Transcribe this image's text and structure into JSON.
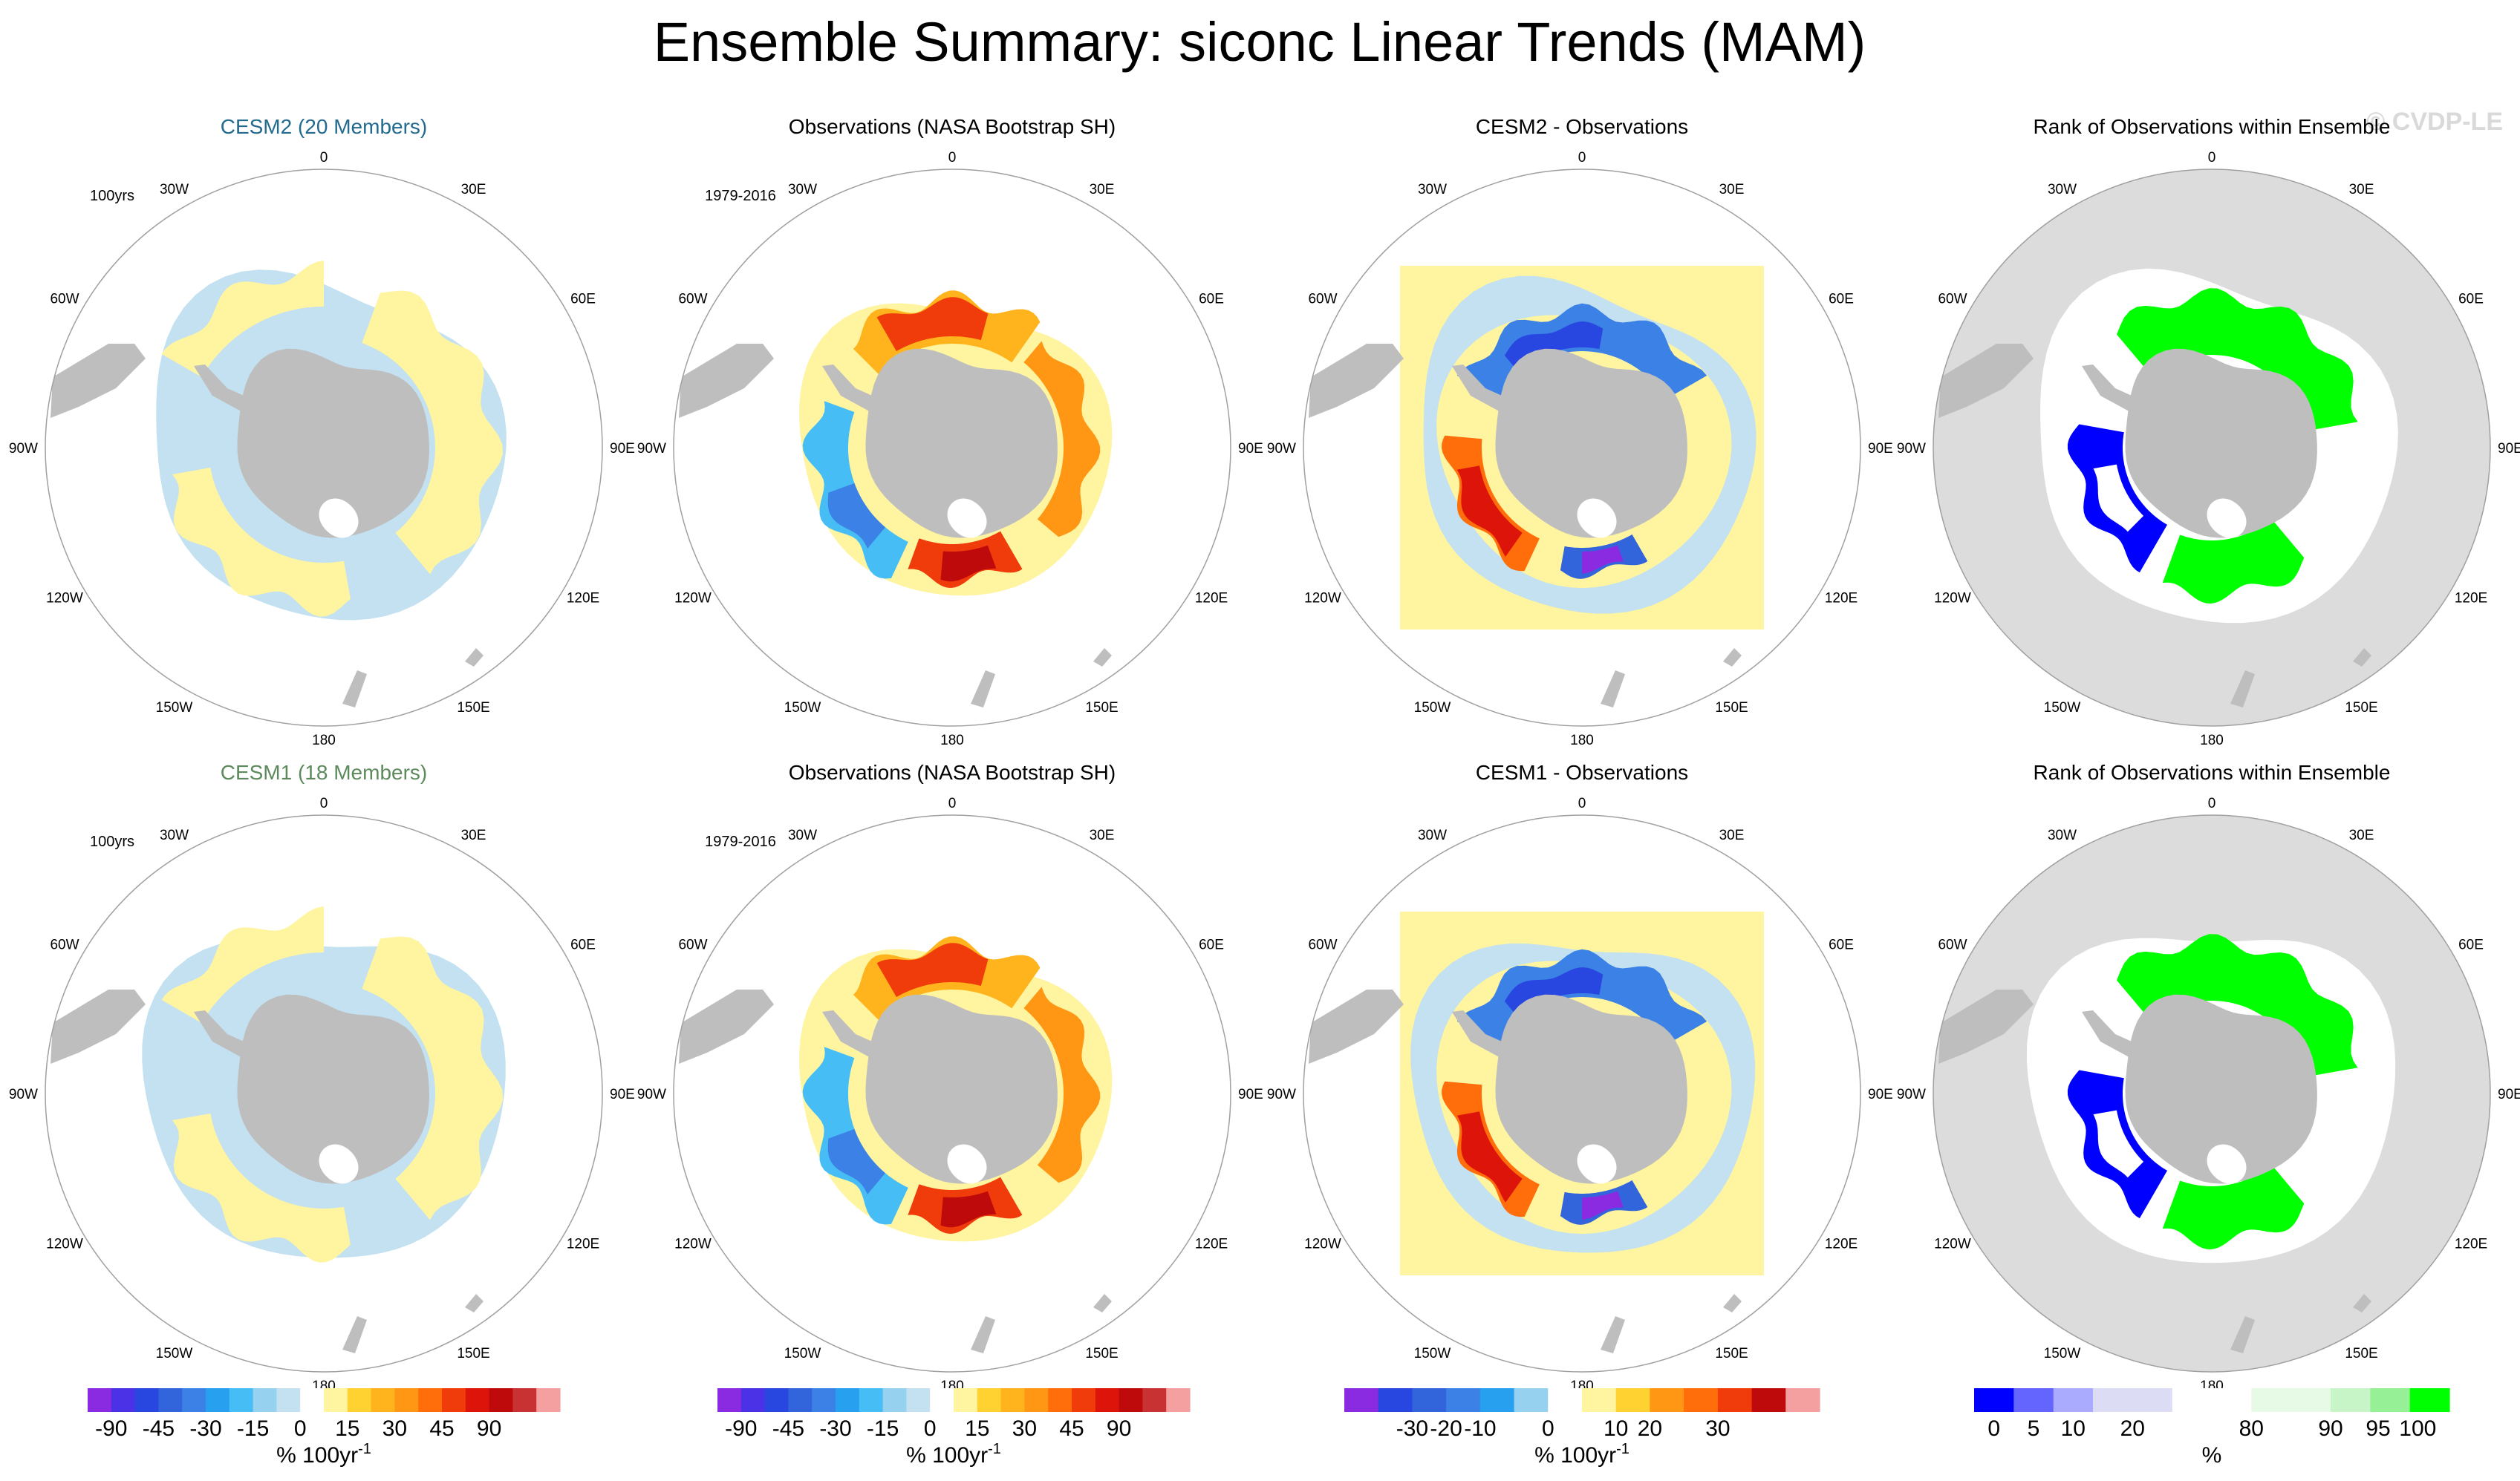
{
  "title": "Ensemble Summary: siconc Linear Trends (MAM)",
  "watermark": "© CVDP-LE",
  "chart_data": [
    {
      "type": "polar-map",
      "rows": [
        {
          "panels": [
            {
              "title": "CESM2 (20 Members)",
              "title_color": "#226a8f",
              "corner_label": "100yrs",
              "kind": "model"
            },
            {
              "title": "Observations (NASA Bootstrap SH)",
              "title_color": "#000000",
              "corner_label": "1979-2016",
              "kind": "obs"
            },
            {
              "title": "CESM2 - Observations",
              "title_color": "#000000",
              "corner_label": "",
              "kind": "diff"
            },
            {
              "title": "Rank of Observations within Ensemble",
              "title_color": "#000000",
              "corner_label": "",
              "kind": "rank"
            }
          ]
        },
        {
          "panels": [
            {
              "title": "CESM1 (18 Members)",
              "title_color": "#5c8a5c",
              "corner_label": "100yrs",
              "kind": "model"
            },
            {
              "title": "Observations (NASA Bootstrap SH)",
              "title_color": "#000000",
              "corner_label": "1979-2016",
              "kind": "obs"
            },
            {
              "title": "CESM1 - Observations",
              "title_color": "#000000",
              "corner_label": "",
              "kind": "diff"
            },
            {
              "title": "Rank of Observations within Ensemble",
              "title_color": "#000000",
              "corner_label": "",
              "kind": "rank"
            }
          ]
        }
      ],
      "longitude_labels": [
        "0",
        "30E",
        "60E",
        "90E",
        "120E",
        "150E",
        "180",
        "150W",
        "120W",
        "90W",
        "60W",
        "30W"
      ],
      "longitude_angles_deg": [
        0,
        30,
        60,
        90,
        120,
        150,
        180,
        210,
        240,
        270,
        300,
        330
      ]
    }
  ],
  "colorbars": [
    {
      "name": "trend-colorbar-1",
      "colors": [
        "#8a2be2",
        "#4b32e6",
        "#2846e0",
        "#3264dc",
        "#3c82e6",
        "#28a0f0",
        "#46bef5",
        "#96d2f0",
        "#c3e1f0",
        "#ffffff",
        "#fff4a0",
        "#ffd232",
        "#ffb41e",
        "#ff9614",
        "#ff6e0a",
        "#f03c0a",
        "#dc140a",
        "#be0a0a",
        "#c83232",
        "#f5a0a0"
      ],
      "tick_labels": [
        "-90",
        "-45",
        "-30",
        "-15",
        "0",
        "15",
        "30",
        "45",
        "90"
      ],
      "tick_positions": [
        1,
        3,
        5,
        7,
        9,
        11,
        13,
        15,
        17
      ],
      "unit": "% 100yr",
      "unit_exp": "-1"
    },
    {
      "name": "trend-colorbar-2",
      "colors": [
        "#8a2be2",
        "#4b32e6",
        "#2846e0",
        "#3264dc",
        "#3c82e6",
        "#28a0f0",
        "#46bef5",
        "#96d2f0",
        "#c3e1f0",
        "#ffffff",
        "#fff4a0",
        "#ffd232",
        "#ffb41e",
        "#ff9614",
        "#ff6e0a",
        "#f03c0a",
        "#dc140a",
        "#be0a0a",
        "#c83232",
        "#f5a0a0"
      ],
      "tick_labels": [
        "-90",
        "-45",
        "-30",
        "-15",
        "0",
        "15",
        "30",
        "45",
        "90"
      ],
      "tick_positions": [
        1,
        3,
        5,
        7,
        9,
        11,
        13,
        15,
        17
      ],
      "unit": "% 100yr",
      "unit_exp": "-1"
    },
    {
      "name": "diff-colorbar",
      "colors": [
        "#8a2be2",
        "#2846e0",
        "#3264dc",
        "#3c82e6",
        "#28a0f0",
        "#96d2f0",
        "#ffffff",
        "#fff4a0",
        "#ffd232",
        "#ff9614",
        "#ff6e0a",
        "#f03c0a",
        "#be0a0a",
        "#f5a0a0"
      ],
      "tick_labels": [
        "-30",
        "-20",
        "-10",
        "0",
        "10",
        "20",
        "30"
      ],
      "tick_positions": [
        2,
        3,
        4,
        6,
        8,
        9,
        11
      ],
      "unit": "% 100yr",
      "unit_exp": "-1"
    },
    {
      "name": "rank-colorbar",
      "colors": [
        "#0000ff",
        "#6464ff",
        "#aaaaff",
        "#dcdcf5",
        "#dcdcf5",
        "#ffffff",
        "#ffffff",
        "#e6fae6",
        "#e6fae6",
        "#c8f5c8",
        "#96f096",
        "#00ff00"
      ],
      "tick_labels": [
        "0",
        "5",
        "10",
        "20",
        "80",
        "90",
        "95",
        "100"
      ],
      "tick_positions": [
        0.5,
        1.5,
        2.5,
        4,
        7,
        9,
        10.2,
        11.2
      ],
      "unit": "%",
      "unit_exp": ""
    }
  ]
}
